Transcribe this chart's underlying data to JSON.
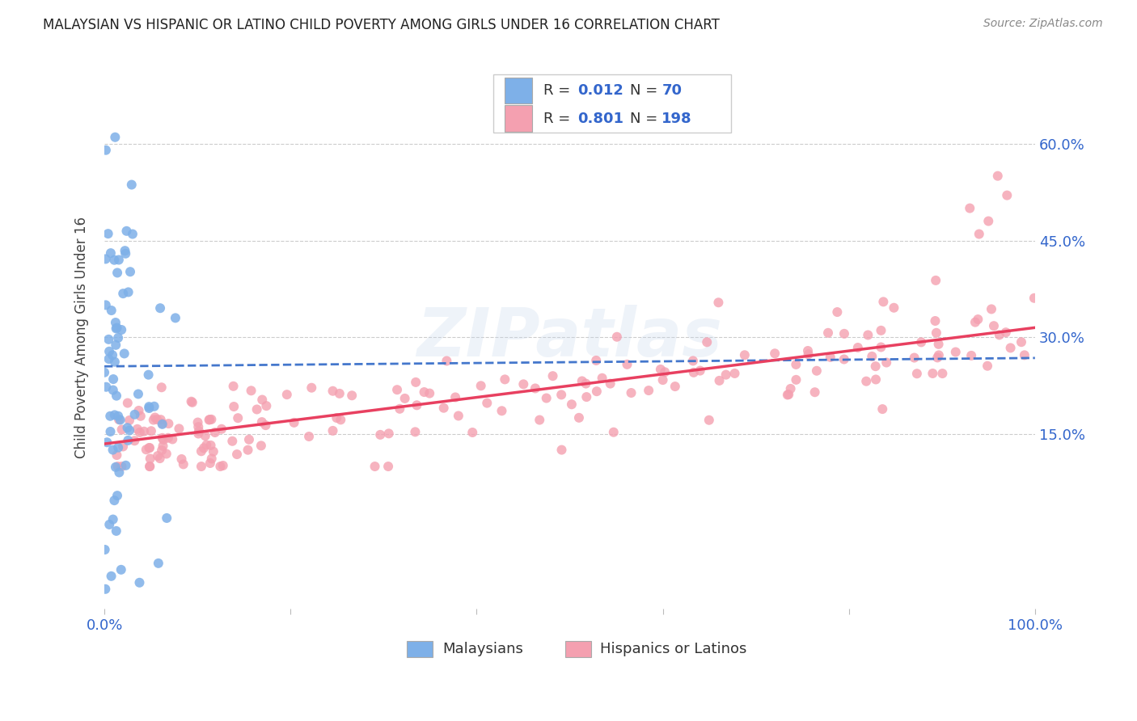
{
  "title": "MALAYSIAN VS HISPANIC OR LATINO CHILD POVERTY AMONG GIRLS UNDER 16 CORRELATION CHART",
  "source": "Source: ZipAtlas.com",
  "ylabel": "Child Poverty Among Girls Under 16",
  "watermark": "ZIPatlas",
  "xlim": [
    0.0,
    1.0
  ],
  "ylim": [
    -0.12,
    0.72
  ],
  "ytick_positions": [
    0.15,
    0.3,
    0.45,
    0.6
  ],
  "ytick_labels": [
    "15.0%",
    "30.0%",
    "45.0%",
    "60.0%"
  ],
  "color_malaysian": "#7EB0E8",
  "color_hispanic": "#F4A0B0",
  "color_trendline_malaysian": "#4477CC",
  "color_trendline_hispanic": "#E84060",
  "color_blue_text": "#3366CC",
  "grid_color": "#CCCCCC",
  "background_color": "#FFFFFF",
  "malay_trendline_start_y": 0.255,
  "malay_trendline_end_y": 0.268,
  "hisp_trendline_start_y": 0.135,
  "hisp_trendline_end_y": 0.315
}
